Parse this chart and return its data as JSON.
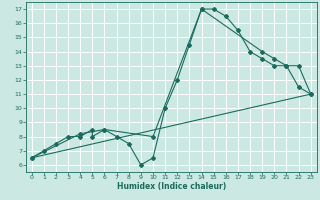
{
  "xlabel": "Humidex (Indice chaleur)",
  "bg_color": "#cce8e2",
  "grid_color": "#ffffff",
  "line_color": "#1a6b5e",
  "xlim": [
    -0.5,
    23.5
  ],
  "ylim": [
    5.5,
    17.5
  ],
  "xticks": [
    0,
    1,
    2,
    3,
    4,
    5,
    6,
    7,
    8,
    9,
    10,
    11,
    12,
    13,
    14,
    15,
    16,
    17,
    18,
    19,
    20,
    21,
    22,
    23
  ],
  "yticks": [
    6,
    7,
    8,
    9,
    10,
    11,
    12,
    13,
    14,
    15,
    16,
    17
  ],
  "line1_x": [
    0,
    1,
    2,
    3,
    4,
    5,
    5,
    6,
    7,
    8,
    9,
    10,
    11,
    12,
    13,
    14,
    15,
    16,
    17,
    18,
    19,
    20,
    21,
    22,
    23
  ],
  "line1_y": [
    6.5,
    7.0,
    7.5,
    8.0,
    8.0,
    8.5,
    8.0,
    8.5,
    8.0,
    7.5,
    6.0,
    6.5,
    10.0,
    12.0,
    14.5,
    17.0,
    17.0,
    16.5,
    15.5,
    14.0,
    13.5,
    13.0,
    13.0,
    11.5,
    11.0
  ],
  "line2_x": [
    0,
    4,
    6,
    10,
    14,
    19,
    20,
    21,
    22,
    23
  ],
  "line2_y": [
    6.5,
    8.2,
    8.5,
    8.0,
    17.0,
    14.0,
    13.5,
    13.0,
    13.0,
    11.0
  ],
  "line3_x": [
    0,
    23
  ],
  "line3_y": [
    6.5,
    11.0
  ]
}
